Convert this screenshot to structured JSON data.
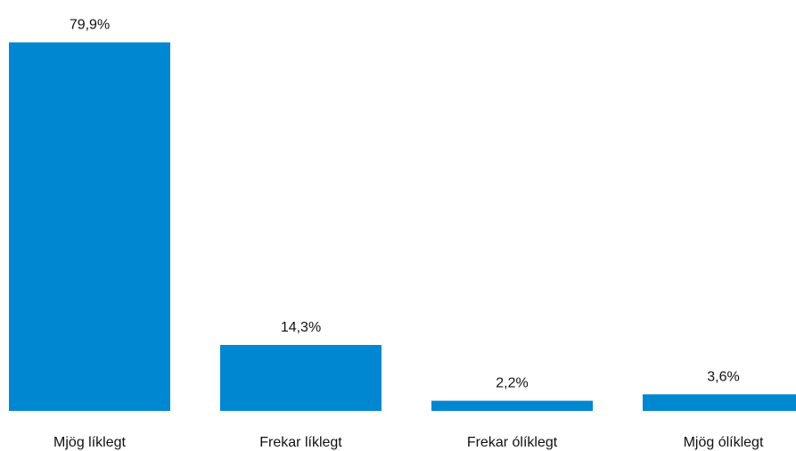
{
  "chart_data": {
    "type": "bar",
    "categories": [
      "Mjög líklegt",
      "Frekar líklegt",
      "Frekar ólíklegt",
      "Mjög ólíklegt"
    ],
    "values": [
      79.9,
      14.3,
      2.2,
      3.6
    ],
    "value_labels": [
      "79,9%",
      "14,3%",
      "2,2%",
      "3,6%"
    ],
    "ylim": [
      0,
      80
    ],
    "grid": false,
    "legend": "none",
    "bar_color": "#0087D2"
  }
}
